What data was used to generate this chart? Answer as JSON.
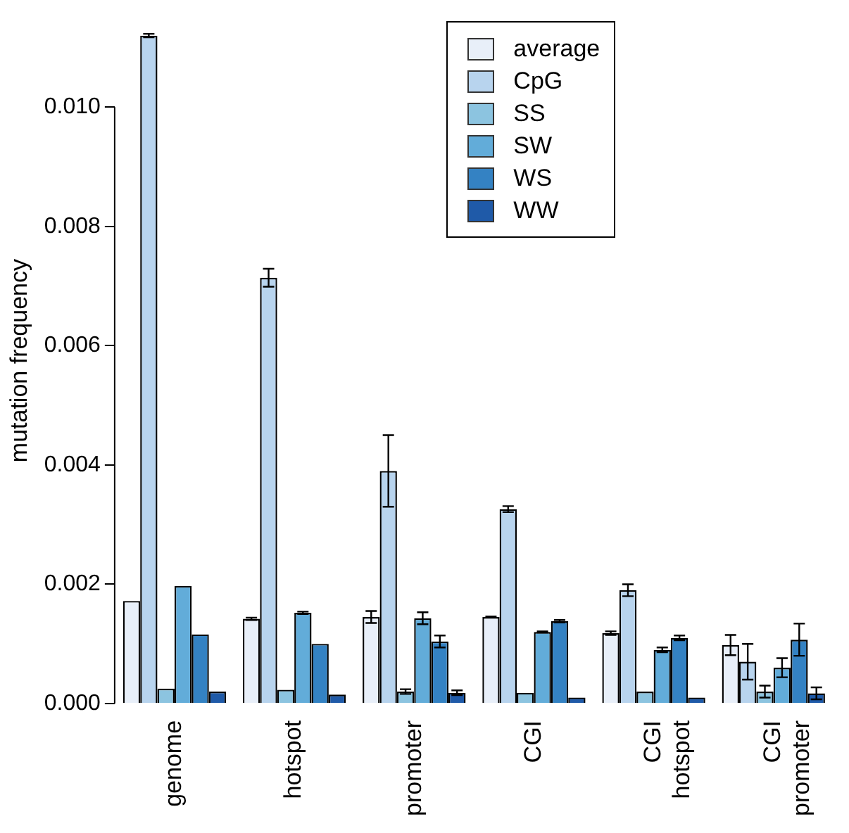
{
  "chart_data": {
    "type": "bar",
    "ylabel": "mutation frequency",
    "categories": [
      "genome",
      "hotspot",
      "promoter",
      "CGI",
      "CGI\nhotspot",
      "CGI\npromoter"
    ],
    "series": [
      {
        "name": "average",
        "color": "#e8eff9",
        "values": [
          0.00172,
          0.00142,
          0.00145,
          0.00145,
          0.00118,
          0.00098
        ],
        "errors": [
          null,
          2e-05,
          0.0001,
          1e-05,
          3e-05,
          0.00017
        ]
      },
      {
        "name": "CpG",
        "color": "#b8d4ee",
        "values": [
          0.0112,
          0.00714,
          0.0039,
          0.00326,
          0.0019,
          0.0007
        ],
        "errors": [
          3e-05,
          0.00015,
          0.0006,
          5e-05,
          0.0001,
          0.0003
        ]
      },
      {
        "name": "SS",
        "color": "#8cc4e0",
        "values": [
          0.00025,
          0.00023,
          0.0002,
          0.00018,
          0.0002,
          0.0002
        ],
        "errors": [
          null,
          null,
          4e-05,
          null,
          null,
          0.0001
        ]
      },
      {
        "name": "SW",
        "color": "#62acd9",
        "values": [
          0.00197,
          0.00152,
          0.00143,
          0.0012,
          0.0009,
          0.0006
        ],
        "errors": [
          null,
          2e-05,
          0.0001,
          1e-05,
          4e-05,
          0.00016
        ]
      },
      {
        "name": "WS",
        "color": "#3482c3",
        "values": [
          0.00116,
          0.001,
          0.00104,
          0.00138,
          0.0011,
          0.00107
        ],
        "errors": [
          null,
          null,
          0.0001,
          2e-05,
          4e-05,
          0.00027
        ]
      },
      {
        "name": "WW",
        "color": "#1f5aa8",
        "values": [
          0.0002,
          0.00015,
          0.00018,
          0.0001,
          0.0001,
          0.00017
        ],
        "errors": [
          null,
          null,
          4e-05,
          null,
          null,
          0.0001
        ]
      }
    ],
    "ylim": [
      0,
      0.0115
    ],
    "yticks": [
      {
        "value": 0,
        "label": "0.000"
      },
      {
        "value": 0.002,
        "label": "0.002"
      },
      {
        "value": 0.004,
        "label": "0.004"
      },
      {
        "value": 0.006,
        "label": "0.006"
      },
      {
        "value": 0.008,
        "label": "0.008"
      },
      {
        "value": 0.01,
        "label": "0.010"
      }
    ],
    "grid": false,
    "legend": "top"
  }
}
